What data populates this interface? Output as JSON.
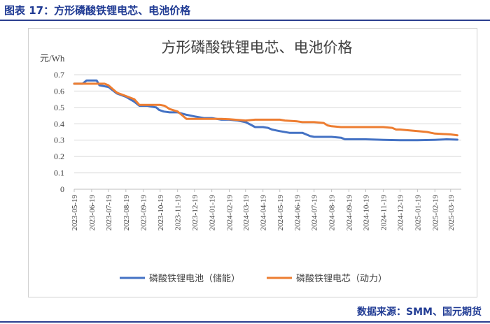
{
  "caption": "图表 17：方形磷酸铁锂电芯、电池价格",
  "source": "数据来源：SMM、国元期货",
  "colors": {
    "series_battery": "#4472c4",
    "series_cell": "#ed7d31",
    "caption_text": "#1f3a93",
    "grid": "#d9d9d9"
  },
  "chart_data": {
    "type": "line",
    "title": "方形磷酸铁锂电芯、电池价格",
    "ylabel": "元/Wh",
    "xlabel": "",
    "ylim": [
      0,
      0.7
    ],
    "yticks": [
      "0",
      "0.1",
      "0.2",
      "0.3",
      "0.4",
      "0.5",
      "0.6",
      "0.7"
    ],
    "grid": true,
    "legend_position": "bottom",
    "categories": [
      "2023-05-19",
      "2023-06-19",
      "2023-07-19",
      "2023-08-19",
      "2023-09-19",
      "2023-10-19",
      "2023-11-19",
      "2023-12-19",
      "2024-01-19",
      "2024-02-19",
      "2024-03-19",
      "2024-04-19",
      "2024-05-19",
      "2024-06-19",
      "2024-07-19",
      "2024-08-19",
      "2024-09-19",
      "2024-10-19",
      "2024-11-19",
      "2024-12-19",
      "2025-01-19",
      "2025-02-19",
      "2025-03-19"
    ],
    "series": [
      {
        "name": "磷酸铁锂电池（储能）",
        "color": "#4472c4",
        "points": [
          [
            "2023-05-19",
            0.645
          ],
          [
            "2023-06-03",
            0.645
          ],
          [
            "2023-06-10",
            0.665
          ],
          [
            "2023-06-28",
            0.665
          ],
          [
            "2023-07-03",
            0.635
          ],
          [
            "2023-07-19",
            0.625
          ],
          [
            "2023-08-03",
            0.585
          ],
          [
            "2023-08-19",
            0.565
          ],
          [
            "2023-09-03",
            0.535
          ],
          [
            "2023-09-12",
            0.51
          ],
          [
            "2023-09-27",
            0.51
          ],
          [
            "2023-10-03",
            0.505
          ],
          [
            "2023-10-12",
            0.5
          ],
          [
            "2023-10-17",
            0.485
          ],
          [
            "2023-10-25",
            0.475
          ],
          [
            "2023-11-05",
            0.47
          ],
          [
            "2023-11-19",
            0.47
          ],
          [
            "2023-12-05",
            0.455
          ],
          [
            "2023-12-19",
            0.445
          ],
          [
            "2024-01-05",
            0.435
          ],
          [
            "2024-01-19",
            0.435
          ],
          [
            "2024-02-05",
            0.425
          ],
          [
            "2024-02-19",
            0.425
          ],
          [
            "2024-03-05",
            0.42
          ],
          [
            "2024-03-19",
            0.41
          ],
          [
            "2024-03-28",
            0.395
          ],
          [
            "2024-04-05",
            0.38
          ],
          [
            "2024-04-19",
            0.38
          ],
          [
            "2024-04-28",
            0.375
          ],
          [
            "2024-05-05",
            0.365
          ],
          [
            "2024-05-12",
            0.36
          ],
          [
            "2024-05-19",
            0.355
          ],
          [
            "2024-06-05",
            0.345
          ],
          [
            "2024-06-19",
            0.345
          ],
          [
            "2024-06-28",
            0.345
          ],
          [
            "2024-07-05",
            0.335
          ],
          [
            "2024-07-12",
            0.325
          ],
          [
            "2024-07-19",
            0.32
          ],
          [
            "2024-08-05",
            0.32
          ],
          [
            "2024-08-19",
            0.32
          ],
          [
            "2024-09-05",
            0.315
          ],
          [
            "2024-09-12",
            0.305
          ],
          [
            "2024-09-19",
            0.305
          ],
          [
            "2024-10-19",
            0.305
          ],
          [
            "2024-11-19",
            0.302
          ],
          [
            "2024-12-19",
            0.3
          ],
          [
            "2025-01-19",
            0.3
          ],
          [
            "2025-02-19",
            0.302
          ],
          [
            "2025-03-12",
            0.305
          ],
          [
            "2025-03-31",
            0.303
          ]
        ]
      },
      {
        "name": "磷酸铁锂电芯（动力）",
        "color": "#ed7d31",
        "points": [
          [
            "2023-05-19",
            0.645
          ],
          [
            "2023-06-19",
            0.645
          ],
          [
            "2023-07-12",
            0.645
          ],
          [
            "2023-07-19",
            0.635
          ],
          [
            "2023-08-03",
            0.59
          ],
          [
            "2023-08-19",
            0.57
          ],
          [
            "2023-09-03",
            0.55
          ],
          [
            "2023-09-12",
            0.515
          ],
          [
            "2023-09-27",
            0.515
          ],
          [
            "2023-10-19",
            0.515
          ],
          [
            "2023-10-27",
            0.51
          ],
          [
            "2023-11-05",
            0.49
          ],
          [
            "2023-11-19",
            0.475
          ],
          [
            "2023-11-28",
            0.45
          ],
          [
            "2023-12-05",
            0.43
          ],
          [
            "2023-12-19",
            0.43
          ],
          [
            "2024-01-19",
            0.43
          ],
          [
            "2024-02-05",
            0.43
          ],
          [
            "2024-02-19",
            0.428
          ],
          [
            "2024-03-19",
            0.42
          ],
          [
            "2024-04-05",
            0.425
          ],
          [
            "2024-04-19",
            0.425
          ],
          [
            "2024-05-19",
            0.425
          ],
          [
            "2024-05-28",
            0.42
          ],
          [
            "2024-06-19",
            0.415
          ],
          [
            "2024-06-28",
            0.41
          ],
          [
            "2024-07-19",
            0.41
          ],
          [
            "2024-08-05",
            0.405
          ],
          [
            "2024-08-12",
            0.39
          ],
          [
            "2024-08-19",
            0.385
          ],
          [
            "2024-09-05",
            0.38
          ],
          [
            "2024-09-19",
            0.38
          ],
          [
            "2024-10-19",
            0.38
          ],
          [
            "2024-11-19",
            0.38
          ],
          [
            "2024-12-05",
            0.375
          ],
          [
            "2024-12-12",
            0.365
          ],
          [
            "2024-12-19",
            0.365
          ],
          [
            "2025-01-05",
            0.36
          ],
          [
            "2025-01-19",
            0.355
          ],
          [
            "2025-02-05",
            0.35
          ],
          [
            "2025-02-12",
            0.345
          ],
          [
            "2025-02-19",
            0.34
          ],
          [
            "2025-03-19",
            0.335
          ],
          [
            "2025-03-31",
            0.33
          ]
        ]
      }
    ]
  }
}
